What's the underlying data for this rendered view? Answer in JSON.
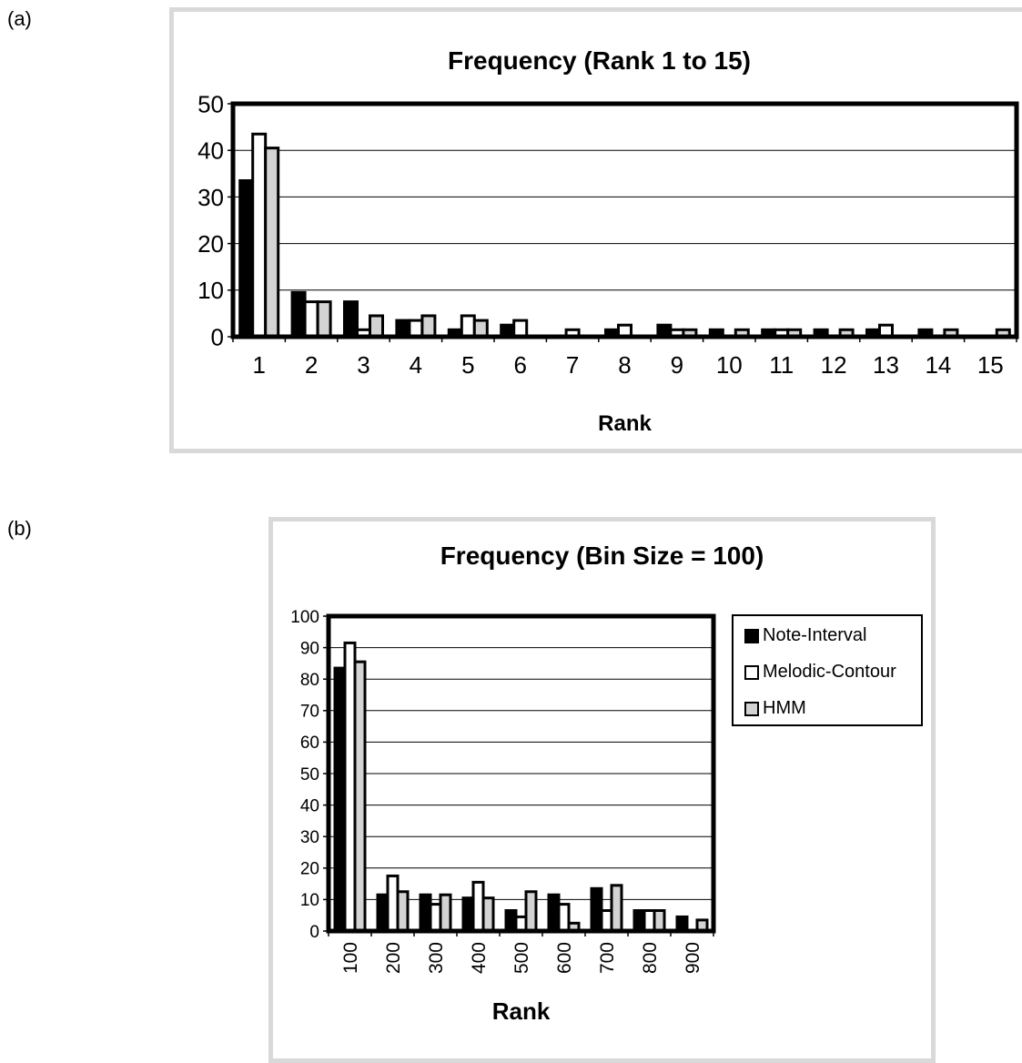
{
  "panels": [
    {
      "label": "(a)"
    },
    {
      "label": "(b)"
    }
  ],
  "colors": {
    "note_interval": "#000000",
    "melodic_contour": "#ffffff",
    "hmm": "#d3d3d3",
    "frame": "#d9d9d9",
    "grid": "#000000"
  },
  "chart_data": [
    {
      "type": "bar",
      "title": "Frequency (Rank 1 to 15)",
      "xlabel": "Rank",
      "ylabel": "",
      "ylim": [
        0,
        50
      ],
      "yticks": [
        "0",
        "10",
        "20",
        "30",
        "40",
        "50"
      ],
      "categories": [
        "1",
        "2",
        "3",
        "4",
        "5",
        "6",
        "7",
        "8",
        "9",
        "10",
        "11",
        "12",
        "13",
        "14",
        "15"
      ],
      "series": [
        {
          "name": "Note-Interval",
          "values": [
            33.5,
            9.5,
            7.5,
            3.5,
            1.5,
            2.5,
            0,
            1.5,
            2.5,
            1.5,
            1.5,
            1.5,
            1.5,
            1.5,
            0
          ]
        },
        {
          "name": "Melodic-Contour",
          "values": [
            43.5,
            7.5,
            1.5,
            3.5,
            4.5,
            3.5,
            1.5,
            2.5,
            1.5,
            0,
            1.5,
            0,
            2.5,
            0,
            0
          ]
        },
        {
          "name": "HMM",
          "values": [
            40.5,
            7.5,
            4.5,
            4.5,
            3.5,
            0,
            0,
            0,
            1.5,
            1.5,
            1.5,
            1.5,
            0,
            1.5,
            1.5
          ]
        }
      ],
      "grid": true
    },
    {
      "type": "bar",
      "title": "Frequency (Bin Size = 100)",
      "xlabel": "Rank",
      "ylabel": "",
      "ylim": [
        0,
        100
      ],
      "yticks": [
        "0",
        "10",
        "20",
        "30",
        "40",
        "50",
        "60",
        "70",
        "80",
        "90",
        "100"
      ],
      "categories": [
        "100",
        "200",
        "300",
        "400",
        "500",
        "600",
        "700",
        "800",
        "900"
      ],
      "series": [
        {
          "name": "Note-Interval",
          "values": [
            83.5,
            11.5,
            11.5,
            10.5,
            6.5,
            11.5,
            13.5,
            6.5,
            4.5
          ]
        },
        {
          "name": "Melodic-Contour",
          "values": [
            91.5,
            17.5,
            8.5,
            15.5,
            4.5,
            8.5,
            6.5,
            6.5,
            0
          ]
        },
        {
          "name": "HMM",
          "values": [
            85.5,
            12.5,
            11.5,
            10.5,
            12.5,
            2.5,
            14.5,
            6.5,
            3.5
          ]
        }
      ],
      "legend": {
        "position": "right",
        "entries": [
          "Note-Interval",
          "Melodic-Contour",
          "HMM"
        ]
      },
      "grid": true
    }
  ]
}
